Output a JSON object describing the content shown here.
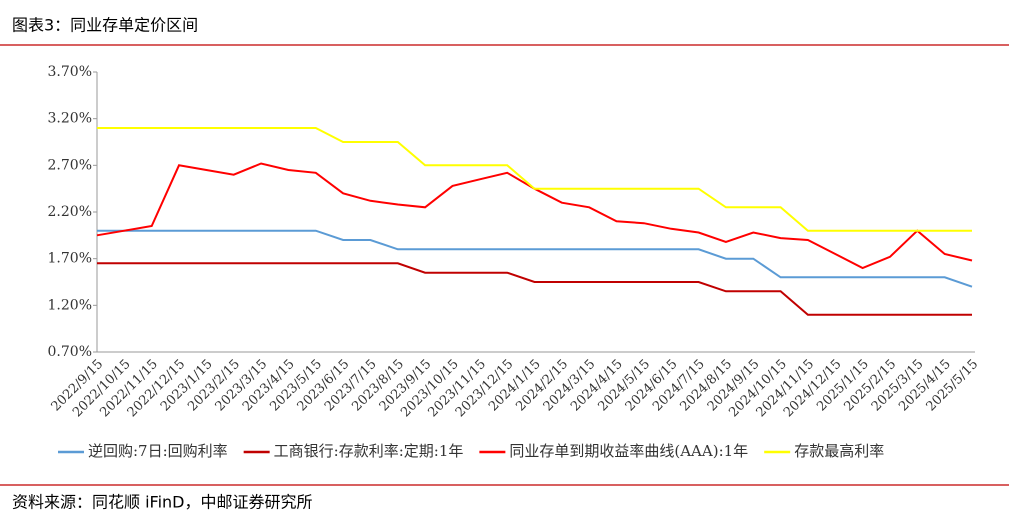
{
  "header": {
    "title": "图表3：同业存单定价区间"
  },
  "source": "资料来源：同花顺 iFinD，中邮证券研究所",
  "chart_data": {
    "type": "line",
    "categories": [
      "2022/9/15",
      "2022/10/15",
      "2022/11/15",
      "2022/12/15",
      "2023/1/15",
      "2023/2/15",
      "2023/3/15",
      "2023/4/15",
      "2023/5/15",
      "2023/6/15",
      "2023/7/15",
      "2023/8/15",
      "2023/9/15",
      "2023/10/15",
      "2023/11/15",
      "2023/12/15",
      "2024/1/15",
      "2024/2/15",
      "2024/3/15",
      "2024/4/15",
      "2024/5/15",
      "2024/6/15",
      "2024/7/15",
      "2024/8/15",
      "2024/9/15",
      "2024/10/15",
      "2024/11/15",
      "2024/12/15",
      "2025/1/15",
      "2025/2/15",
      "2025/3/15",
      "2025/4/15",
      "2025/5/15"
    ],
    "series": [
      {
        "name": "逆回购:7日:回购利率",
        "color": "#5b9bd5",
        "values": [
          2.0,
          2.0,
          2.0,
          2.0,
          2.0,
          2.0,
          2.0,
          2.0,
          2.0,
          1.9,
          1.9,
          1.8,
          1.8,
          1.8,
          1.8,
          1.8,
          1.8,
          1.8,
          1.8,
          1.8,
          1.8,
          1.8,
          1.8,
          1.7,
          1.7,
          1.5,
          1.5,
          1.5,
          1.5,
          1.5,
          1.5,
          1.5,
          1.4
        ]
      },
      {
        "name": "工商银行:存款利率:定期:1年",
        "color": "#c00000",
        "values": [
          1.65,
          1.65,
          1.65,
          1.65,
          1.65,
          1.65,
          1.65,
          1.65,
          1.65,
          1.65,
          1.65,
          1.65,
          1.55,
          1.55,
          1.55,
          1.55,
          1.45,
          1.45,
          1.45,
          1.45,
          1.45,
          1.45,
          1.45,
          1.35,
          1.35,
          1.35,
          1.1,
          1.1,
          1.1,
          1.1,
          1.1,
          1.1,
          1.1
        ]
      },
      {
        "name": "同业存单到期收益率曲线(AAA):1年",
        "color": "#ff0000",
        "values": [
          1.95,
          2.0,
          2.05,
          2.7,
          2.65,
          2.6,
          2.72,
          2.65,
          2.62,
          2.4,
          2.32,
          2.28,
          2.25,
          2.48,
          2.55,
          2.62,
          2.45,
          2.3,
          2.25,
          2.1,
          2.08,
          2.02,
          1.98,
          1.88,
          1.98,
          1.92,
          1.9,
          1.75,
          1.6,
          1.72,
          2.0,
          1.75,
          1.68
        ]
      },
      {
        "name": "存款最高利率",
        "color": "#ffff00",
        "values": [
          3.1,
          3.1,
          3.1,
          3.1,
          3.1,
          3.1,
          3.1,
          3.1,
          3.1,
          2.95,
          2.95,
          2.95,
          2.7,
          2.7,
          2.7,
          2.7,
          2.45,
          2.45,
          2.45,
          2.45,
          2.45,
          2.45,
          2.45,
          2.25,
          2.25,
          2.25,
          2.0,
          2.0,
          2.0,
          2.0,
          2.0,
          2.0,
          2.0
        ]
      }
    ],
    "ylim": [
      0.7,
      3.7
    ],
    "yticks": [
      {
        "value": 0.7,
        "label": "0.70%"
      },
      {
        "value": 1.2,
        "label": "1.20%"
      },
      {
        "value": 1.7,
        "label": "1.70%"
      },
      {
        "value": 2.2,
        "label": "2.20%"
      },
      {
        "value": 2.7,
        "label": "2.70%"
      },
      {
        "value": 3.2,
        "label": "3.20%"
      },
      {
        "value": 3.7,
        "label": "3.70%"
      }
    ],
    "grid": false,
    "legend": "bottom"
  }
}
